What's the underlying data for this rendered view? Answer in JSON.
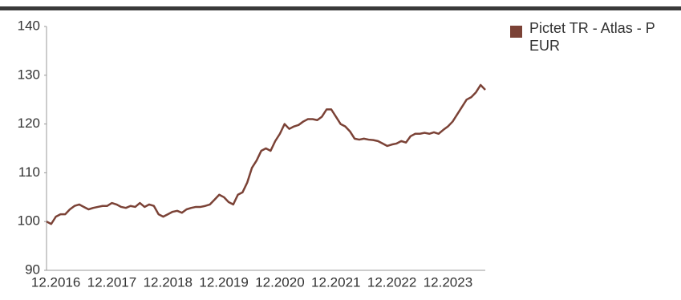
{
  "chart_data": {
    "type": "line",
    "x": [
      "10.2016",
      "11.2016",
      "12.2016",
      "01.2017",
      "02.2017",
      "03.2017",
      "04.2017",
      "05.2017",
      "06.2017",
      "07.2017",
      "08.2017",
      "09.2017",
      "10.2017",
      "11.2017",
      "12.2017",
      "01.2018",
      "02.2018",
      "03.2018",
      "04.2018",
      "05.2018",
      "06.2018",
      "07.2018",
      "08.2018",
      "09.2018",
      "10.2018",
      "11.2018",
      "12.2018",
      "01.2019",
      "02.2019",
      "03.2019",
      "04.2019",
      "05.2019",
      "06.2019",
      "07.2019",
      "08.2019",
      "09.2019",
      "10.2019",
      "11.2019",
      "12.2019",
      "01.2020",
      "02.2020",
      "03.2020",
      "04.2020",
      "05.2020",
      "06.2020",
      "07.2020",
      "08.2020",
      "09.2020",
      "10.2020",
      "11.2020",
      "12.2020",
      "01.2021",
      "02.2021",
      "03.2021",
      "04.2021",
      "05.2021",
      "06.2021",
      "07.2021",
      "08.2021",
      "09.2021",
      "10.2021",
      "11.2021",
      "12.2021",
      "01.2022",
      "02.2022",
      "03.2022",
      "04.2022",
      "05.2022",
      "06.2022",
      "07.2022",
      "08.2022",
      "09.2022",
      "10.2022",
      "11.2022",
      "12.2022",
      "01.2023",
      "02.2023",
      "03.2023",
      "04.2023",
      "05.2023",
      "06.2023",
      "07.2023",
      "08.2023",
      "09.2023",
      "10.2023",
      "11.2023",
      "12.2023",
      "01.2024",
      "02.2024",
      "03.2024",
      "04.2024",
      "05.2024",
      "06.2024",
      "07.2024",
      "08.2024"
    ],
    "series": [
      {
        "name": "Pictet TR - Atlas - P EUR",
        "color": "#7b4236",
        "values": [
          100,
          99.5,
          101,
          101.5,
          101.5,
          102.5,
          103.2,
          103.5,
          103,
          102.5,
          102.8,
          103,
          103.2,
          103.2,
          103.8,
          103.5,
          103,
          102.8,
          103.2,
          103,
          103.8,
          103,
          103.5,
          103.2,
          101.5,
          101,
          101.5,
          102,
          102.2,
          101.8,
          102.5,
          102.8,
          103,
          103,
          103.2,
          103.5,
          104.5,
          105.5,
          105,
          104,
          103.5,
          105.5,
          106,
          108,
          111,
          112.5,
          114.5,
          115,
          114.5,
          116.5,
          118,
          120,
          119,
          119.5,
          119.8,
          120.5,
          121,
          121,
          120.8,
          121.5,
          123,
          123,
          121.5,
          120,
          119.5,
          118.5,
          117,
          116.8,
          117,
          116.8,
          116.7,
          116.5,
          116,
          115.5,
          115.8,
          116,
          116.5,
          116.2,
          117.5,
          118,
          118,
          118.2,
          118,
          118.3,
          118,
          118.8,
          119.5,
          120.5,
          122,
          123.5,
          125,
          125.5,
          126.5,
          128,
          127
        ]
      }
    ],
    "xticks": [
      "12.2016",
      "12.2017",
      "12.2018",
      "12.2019",
      "12.2020",
      "12.2021",
      "12.2022",
      "12.2023"
    ],
    "ylim": [
      90,
      140
    ],
    "yticks": [
      90,
      100,
      110,
      120,
      130,
      140
    ],
    "grid": false,
    "legend": "right"
  }
}
